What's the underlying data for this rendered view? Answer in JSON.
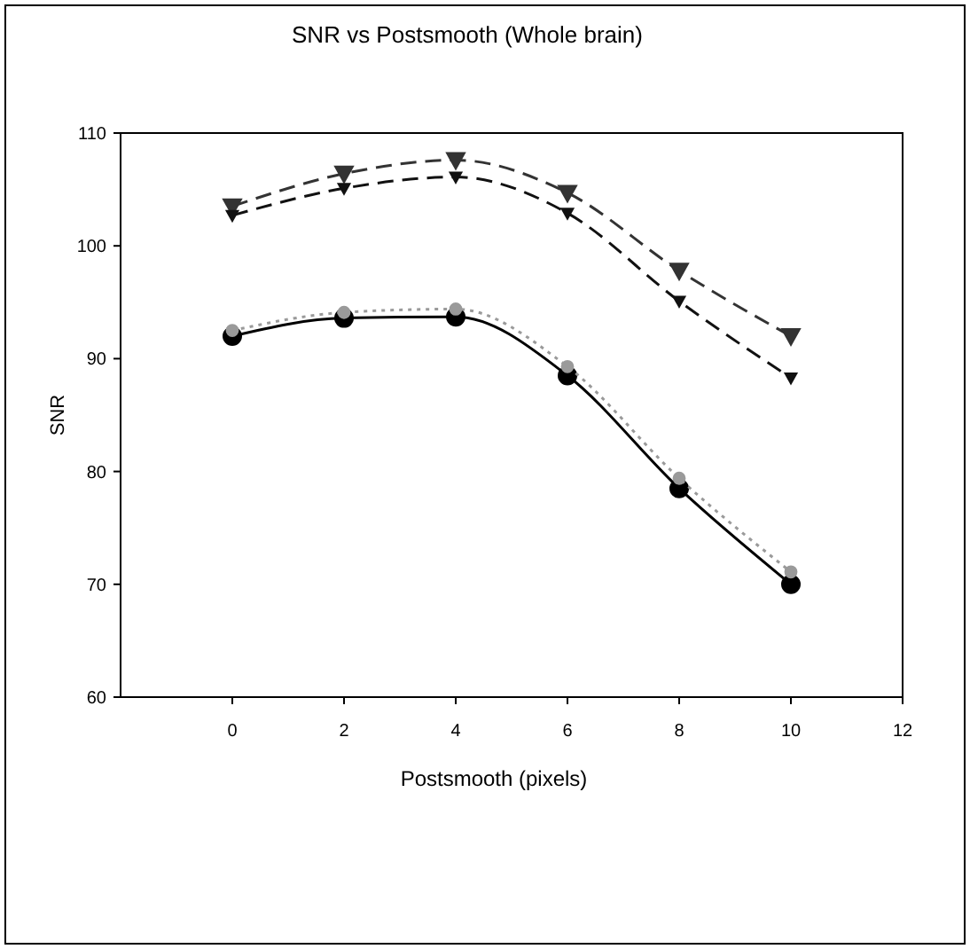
{
  "chart_data": {
    "type": "line",
    "title": "SNR vs Postsmooth (Whole brain)",
    "xlabel": "Postsmooth (pixels)",
    "ylabel": "SNR",
    "x": [
      0,
      2,
      4,
      6,
      8,
      10
    ],
    "series": [
      {
        "color": "#000000",
        "values": [
          92.0,
          93.6,
          93.7,
          88.5,
          78.5,
          70.0
        ],
        "line_style": "solid",
        "marker": "circle"
      },
      {
        "color": "#9a9a9a",
        "values": [
          92.5,
          94.1,
          94.4,
          89.3,
          79.4,
          71.1
        ],
        "line_style": "dotted",
        "marker": "circle"
      },
      {
        "color": "#333333",
        "values": [
          103.5,
          106.4,
          107.6,
          104.7,
          97.8,
          92.0
        ],
        "line_style": "dashed",
        "marker": "triangle"
      },
      {
        "color": "#111111",
        "values": [
          102.7,
          105.1,
          106.1,
          102.9,
          95.1,
          88.3
        ],
        "line_style": "dashed",
        "marker": "triangle"
      }
    ],
    "xlim": [
      -2,
      12
    ],
    "xticks": [
      0,
      2,
      4,
      6,
      8,
      10,
      12
    ],
    "ylim": [
      60,
      110
    ],
    "yticks": [
      60,
      70,
      80,
      90,
      100,
      110
    ]
  }
}
